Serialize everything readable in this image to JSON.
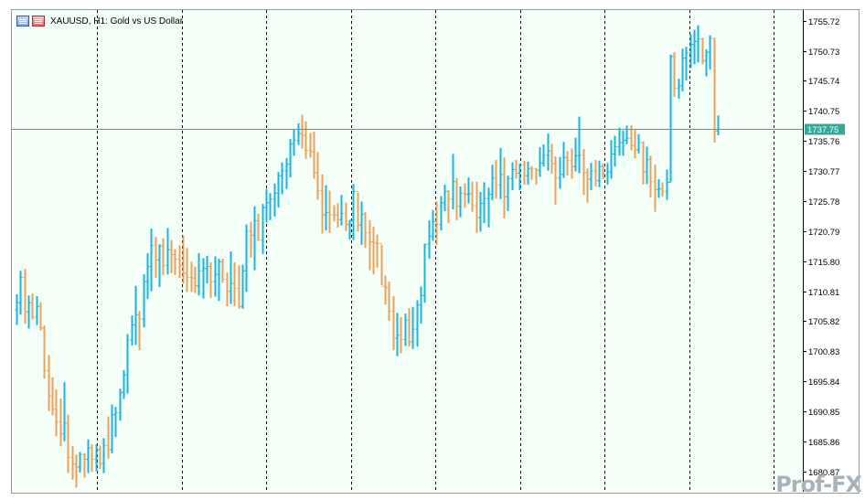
{
  "header": {
    "text": "XAUUSD, H1:  Gold vs US Dollar"
  },
  "watermark": "Prof-FX",
  "colors": {
    "background": "#f4fff8",
    "bull": "#1cb4dc",
    "bear": "#eaa15c",
    "grid": "#000000",
    "current_price_line": "#36a89a",
    "current_price_tag": "#36a89a"
  },
  "chart_data": {
    "type": "bar",
    "symbol": "XAUUSD",
    "timeframe": "H1",
    "ylim": [
      1677.5,
      1757.5
    ],
    "y_ticks": [
      "1755.72",
      "1750.73",
      "1745.74",
      "1740.75",
      "1735.76",
      "1730.77",
      "1725.78",
      "1720.79",
      "1715.80",
      "1710.81",
      "1705.82",
      "1700.83",
      "1695.84",
      "1690.85",
      "1685.86",
      "1680.87"
    ],
    "current_price": 1737.75,
    "current_price_label": "1737.75",
    "vertical_separators": 9,
    "ohlc": [
      [
        1707.7,
        1710.3,
        1705.2,
        1708.9
      ],
      [
        1708.9,
        1714.2,
        1706.9,
        1713.1
      ],
      [
        1713.1,
        1714.5,
        1705.4,
        1707.4
      ],
      [
        1707.4,
        1710.1,
        1704.6,
        1708.9
      ],
      [
        1708.9,
        1710.4,
        1706.1,
        1706.5
      ],
      [
        1706.5,
        1710.0,
        1705.2,
        1708.3
      ],
      [
        1708.3,
        1709.0,
        1704.3,
        1704.7
      ],
      [
        1704.7,
        1705.1,
        1696.3,
        1697.6
      ],
      [
        1697.6,
        1700.2,
        1690.9,
        1693.4
      ],
      [
        1693.4,
        1696.5,
        1690.2,
        1691.2
      ],
      [
        1691.2,
        1694.5,
        1686.7,
        1689.1
      ],
      [
        1689.1,
        1693.0,
        1685.1,
        1687.1
      ],
      [
        1687.1,
        1695.7,
        1685.9,
        1688.9
      ],
      [
        1688.9,
        1690.3,
        1680.6,
        1683.2
      ],
      [
        1683.2,
        1685.1,
        1679.5,
        1682.1
      ],
      [
        1682.1,
        1683.7,
        1678.2,
        1681.6
      ],
      [
        1681.6,
        1684.1,
        1680.7,
        1683.7
      ],
      [
        1683.7,
        1683.9,
        1679.8,
        1682.9
      ],
      [
        1682.9,
        1686.2,
        1680.6,
        1684.8
      ],
      [
        1684.8,
        1685.4,
        1680.8,
        1682.9
      ],
      [
        1682.9,
        1685.4,
        1680.9,
        1684.5
      ],
      [
        1684.5,
        1685.2,
        1681.3,
        1682.2
      ],
      [
        1682.2,
        1686.4,
        1680.6,
        1685.2
      ],
      [
        1685.2,
        1690.0,
        1683.0,
        1684.5
      ],
      [
        1684.5,
        1692.0,
        1683.9,
        1690.3
      ],
      [
        1690.3,
        1691.6,
        1686.6,
        1690.6
      ],
      [
        1690.6,
        1694.6,
        1689.3,
        1694.0
      ],
      [
        1694.0,
        1697.7,
        1692.9,
        1696.9
      ],
      [
        1696.9,
        1703.7,
        1693.8,
        1702.7
      ],
      [
        1702.7,
        1706.8,
        1701.8,
        1705.2
      ],
      [
        1705.2,
        1711.7,
        1701.9,
        1706.9
      ],
      [
        1706.9,
        1707.5,
        1701.0,
        1706.2
      ],
      [
        1706.2,
        1713.6,
        1704.8,
        1712.4
      ],
      [
        1712.4,
        1717.1,
        1709.5,
        1714.9
      ],
      [
        1714.9,
        1721.2,
        1710.8,
        1718.4
      ],
      [
        1718.4,
        1719.8,
        1713.0,
        1716.0
      ],
      [
        1716.0,
        1718.6,
        1711.5,
        1718.3
      ],
      [
        1718.3,
        1719.6,
        1713.5,
        1715.1
      ],
      [
        1715.1,
        1721.3,
        1713.6,
        1717.7
      ],
      [
        1717.7,
        1719.3,
        1713.8,
        1716.9
      ],
      [
        1716.9,
        1717.8,
        1713.5,
        1716.1
      ],
      [
        1716.1,
        1718.4,
        1713.0,
        1715.0
      ],
      [
        1715.0,
        1720.1,
        1712.1,
        1713.8
      ],
      [
        1713.8,
        1718.0,
        1710.7,
        1713.1
      ],
      [
        1713.1,
        1715.7,
        1710.7,
        1713.0
      ],
      [
        1713.0,
        1714.9,
        1710.5,
        1711.7
      ],
      [
        1711.7,
        1717.1,
        1710.1,
        1714.2
      ],
      [
        1714.2,
        1716.3,
        1709.6,
        1714.6
      ],
      [
        1714.6,
        1716.7,
        1712.1,
        1714.9
      ],
      [
        1714.9,
        1715.6,
        1709.7,
        1712.4
      ],
      [
        1712.4,
        1716.6,
        1709.9,
        1713.6
      ],
      [
        1713.6,
        1716.2,
        1709.2,
        1715.7
      ],
      [
        1715.7,
        1716.2,
        1712.2,
        1712.8
      ],
      [
        1712.8,
        1713.9,
        1708.3,
        1710.8
      ],
      [
        1710.8,
        1717.4,
        1708.7,
        1712.1
      ],
      [
        1712.1,
        1715.6,
        1708.3,
        1711.3
      ],
      [
        1711.3,
        1715.1,
        1707.9,
        1708.3
      ],
      [
        1708.3,
        1715.2,
        1707.9,
        1714.2
      ],
      [
        1714.2,
        1721.9,
        1710.7,
        1720.8
      ],
      [
        1720.8,
        1722.3,
        1716.4,
        1720.1
      ],
      [
        1720.1,
        1724.9,
        1714.3,
        1722.5
      ],
      [
        1722.5,
        1723.7,
        1719.2,
        1719.3
      ],
      [
        1719.3,
        1725.3,
        1717.0,
        1724.7
      ],
      [
        1724.7,
        1727.8,
        1722.2,
        1725.5
      ],
      [
        1725.5,
        1727.1,
        1722.6,
        1726.1
      ],
      [
        1726.1,
        1728.7,
        1723.2,
        1727.1
      ],
      [
        1727.1,
        1730.6,
        1724.7,
        1730.0
      ],
      [
        1730.0,
        1732.2,
        1726.9,
        1730.8
      ],
      [
        1730.8,
        1732.9,
        1727.8,
        1731.9
      ],
      [
        1731.9,
        1736.1,
        1729.7,
        1735.3
      ],
      [
        1735.3,
        1737.6,
        1733.3,
        1735.9
      ],
      [
        1735.9,
        1738.7,
        1735.1,
        1737.0
      ],
      [
        1737.0,
        1740.1,
        1734.5,
        1736.7
      ],
      [
        1736.7,
        1739.0,
        1732.8,
        1734.2
      ],
      [
        1734.2,
        1737.1,
        1733.0,
        1734.0
      ],
      [
        1734.0,
        1737.3,
        1729.5,
        1730.5
      ],
      [
        1730.5,
        1733.9,
        1726.0,
        1727.5
      ],
      [
        1727.5,
        1730.2,
        1720.4,
        1723.5
      ],
      [
        1723.5,
        1728.4,
        1720.9,
        1723.9
      ],
      [
        1723.9,
        1727.5,
        1720.5,
        1723.5
      ],
      [
        1723.5,
        1725.1,
        1722.4,
        1723.4
      ],
      [
        1723.5,
        1725.4,
        1721.4,
        1722.7
      ],
      [
        1722.7,
        1726.8,
        1721.7,
        1723.7
      ],
      [
        1723.7,
        1725.5,
        1720.8,
        1721.9
      ],
      [
        1721.9,
        1722.6,
        1719.4,
        1722.6
      ],
      [
        1722.6,
        1728.6,
        1719.3,
        1727.4
      ],
      [
        1727.4,
        1727.2,
        1720.7,
        1721.8
      ],
      [
        1721.8,
        1725.7,
        1718.5,
        1723.6
      ],
      [
        1723.6,
        1724.0,
        1718.0,
        1720.5
      ],
      [
        1720.5,
        1722.6,
        1714.3,
        1719.0
      ],
      [
        1719.0,
        1721.5,
        1713.6,
        1718.8
      ],
      [
        1718.8,
        1720.2,
        1714.7,
        1718.7
      ],
      [
        1718.7,
        1718.5,
        1711.8,
        1711.6
      ],
      [
        1711.6,
        1713.4,
        1708.6,
        1711.4
      ],
      [
        1711.4,
        1712.4,
        1705.9,
        1707.5
      ],
      [
        1707.5,
        1710.0,
        1701.0,
        1703.0
      ],
      [
        1703.0,
        1707.2,
        1700.0,
        1703.5
      ],
      [
        1703.5,
        1706.5,
        1700.5,
        1702.8
      ],
      [
        1702.8,
        1707.1,
        1701.7,
        1706.0
      ],
      [
        1706.0,
        1708.0,
        1701.6,
        1702.4
      ],
      [
        1702.4,
        1708.2,
        1701.2,
        1704.5
      ],
      [
        1704.5,
        1709.3,
        1701.6,
        1708.5
      ],
      [
        1708.5,
        1711.6,
        1705.4,
        1710.1
      ],
      [
        1710.1,
        1718.7,
        1708.9,
        1718.6
      ],
      [
        1718.6,
        1722.6,
        1716.2,
        1719.9
      ],
      [
        1719.9,
        1724.3,
        1719.2,
        1722.4
      ],
      [
        1722.4,
        1725.7,
        1718.5,
        1721.9
      ],
      [
        1721.9,
        1726.6,
        1720.9,
        1725.5
      ],
      [
        1725.5,
        1728.5,
        1724.1,
        1727.4
      ],
      [
        1727.4,
        1727.6,
        1722.1,
        1726.1
      ],
      [
        1726.1,
        1733.6,
        1724.4,
        1729.0
      ],
      [
        1729.0,
        1729.6,
        1722.6,
        1724.9
      ],
      [
        1724.9,
        1728.2,
        1723.1,
        1727.1
      ],
      [
        1727.1,
        1728.7,
        1724.7,
        1726.9
      ],
      [
        1726.9,
        1729.7,
        1725.4,
        1727.0
      ],
      [
        1727.0,
        1729.0,
        1724.0,
        1725.0
      ],
      [
        1725.0,
        1729.0,
        1720.5,
        1723.0
      ],
      [
        1723.0,
        1727.3,
        1720.7,
        1725.4
      ],
      [
        1725.4,
        1728.9,
        1722.1,
        1726.2
      ],
      [
        1726.2,
        1728.0,
        1721.4,
        1726.9
      ],
      [
        1726.9,
        1731.8,
        1725.9,
        1729.6
      ],
      [
        1729.6,
        1732.6,
        1726.2,
        1728.4
      ],
      [
        1728.4,
        1734.6,
        1726.1,
        1730.2
      ],
      [
        1730.2,
        1733.0,
        1722.9,
        1726.5
      ],
      [
        1726.5,
        1730.0,
        1724.1,
        1729.5
      ],
      [
        1729.5,
        1732.2,
        1727.6,
        1731.0
      ],
      [
        1731.0,
        1732.6,
        1729.5,
        1730.4
      ],
      [
        1730.4,
        1732.0,
        1727.6,
        1731.8
      ],
      [
        1731.8,
        1732.5,
        1728.5,
        1730.0
      ],
      [
        1730.0,
        1732.3,
        1728.5,
        1731.2
      ],
      [
        1731.2,
        1731.6,
        1729.3,
        1731.1
      ],
      [
        1731.1,
        1731.3,
        1728.5,
        1730.9
      ],
      [
        1730.9,
        1734.7,
        1729.8,
        1732.1
      ],
      [
        1732.1,
        1735.2,
        1731.5,
        1733.4
      ],
      [
        1733.4,
        1737.0,
        1730.8,
        1734.1
      ],
      [
        1734.1,
        1735.3,
        1730.3,
        1732.0
      ],
      [
        1732.0,
        1733.2,
        1725.2,
        1729.6
      ],
      [
        1729.6,
        1733.1,
        1727.8,
        1730.2
      ],
      [
        1730.2,
        1735.6,
        1729.6,
        1733.0
      ],
      [
        1733.0,
        1734.1,
        1730.0,
        1732.5
      ],
      [
        1732.5,
        1734.5,
        1729.5,
        1731.5
      ],
      [
        1731.5,
        1736.3,
        1730.7,
        1733.3
      ],
      [
        1733.3,
        1739.8,
        1730.4,
        1733.4
      ],
      [
        1733.4,
        1734.4,
        1726.8,
        1730.5
      ],
      [
        1730.5,
        1731.2,
        1725.5,
        1729.4
      ],
      [
        1729.4,
        1732.1,
        1727.6,
        1730.8
      ],
      [
        1730.8,
        1732.6,
        1728.2,
        1729.2
      ],
      [
        1729.2,
        1732.5,
        1728.1,
        1731.5
      ],
      [
        1731.5,
        1732.0,
        1729.4,
        1730.2
      ],
      [
        1730.2,
        1732.1,
        1728.5,
        1730.6
      ],
      [
        1730.6,
        1735.9,
        1729.5,
        1733.6
      ],
      [
        1733.6,
        1736.6,
        1731.5,
        1734.8
      ],
      [
        1734.8,
        1738.0,
        1733.3,
        1735.5
      ],
      [
        1735.5,
        1737.5,
        1733.3,
        1735.9
      ],
      [
        1735.9,
        1738.3,
        1735.2,
        1736.2
      ],
      [
        1736.2,
        1738.4,
        1734.2,
        1735.0
      ],
      [
        1735.0,
        1737.6,
        1732.9,
        1734.3
      ],
      [
        1734.3,
        1736.9,
        1733.7,
        1735.5
      ],
      [
        1735.5,
        1735.7,
        1728.5,
        1730.6
      ],
      [
        1730.6,
        1734.8,
        1728.6,
        1732.7
      ],
      [
        1732.7,
        1733.3,
        1726.4,
        1729.0
      ],
      [
        1729.0,
        1731.8,
        1724.0,
        1727.7
      ],
      [
        1727.7,
        1729.4,
        1726.3,
        1727.8
      ],
      [
        1727.8,
        1728.9,
        1726.5,
        1727.4
      ],
      [
        1727.4,
        1731.0,
        1726.0,
        1728.9
      ],
      [
        1728.9,
        1750.1,
        1728.9,
        1749.8
      ],
      [
        1749.8,
        1750.5,
        1743.1,
        1744.5
      ],
      [
        1744.5,
        1746.1,
        1742.8,
        1744.9
      ],
      [
        1744.9,
        1751.1,
        1744.0,
        1749.5
      ],
      [
        1749.5,
        1751.4,
        1745.8,
        1750.4
      ],
      [
        1750.4,
        1753.5,
        1747.9,
        1751.8
      ],
      [
        1751.8,
        1754.2,
        1748.5,
        1752.3
      ],
      [
        1752.3,
        1755.0,
        1748.8,
        1752.7
      ],
      [
        1752.7,
        1752.9,
        1748.5,
        1749.1
      ],
      [
        1749.1,
        1751.0,
        1746.5,
        1750.5
      ],
      [
        1750.5,
        1753.3,
        1747.6,
        1752.8
      ],
      [
        1752.8,
        1752.9,
        1735.5,
        1737.4
      ],
      [
        1737.4,
        1740.0,
        1736.7,
        1737.75
      ]
    ]
  }
}
